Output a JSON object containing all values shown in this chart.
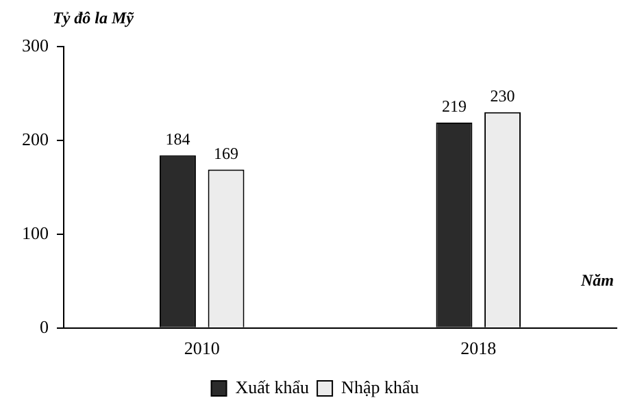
{
  "chart_data": {
    "type": "bar",
    "ylabel": "Tỷ đô la Mỹ",
    "xlabel": "Năm",
    "categories": [
      "2010",
      "2018"
    ],
    "series": [
      {
        "name": "Xuất khẩu",
        "color": "#2b2b2b",
        "values": [
          184,
          219
        ]
      },
      {
        "name": "Nhập khẩu",
        "color": "#ececec",
        "values": [
          169,
          230
        ]
      }
    ],
    "ylim": [
      0,
      300
    ],
    "yticks": [
      0,
      100,
      200,
      300
    ],
    "grid": false,
    "legend": "bottom",
    "data_labels": true
  }
}
